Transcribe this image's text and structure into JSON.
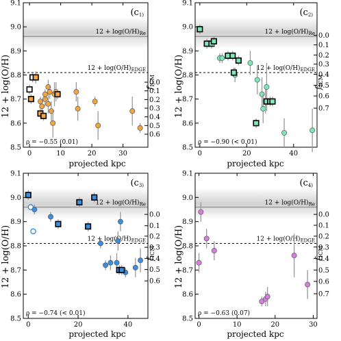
{
  "figure": {
    "ylabel": "12 + log(O/H)",
    "xlabel": "projected kpc",
    "right_label": "f_ICM",
    "ref_re_label": "12 + log(O/H)",
    "ref_re_sub": "Re",
    "ref_edge_label": "12 + log(O/H)",
    "ref_edge_sub": "EDGE"
  },
  "chart_data": [
    {
      "type": "scatter",
      "panel_letter": "c",
      "panel_sub": "1",
      "rho_text": "ρ = −0.55 (0.01)",
      "color": "#f2a541",
      "xlim": [
        -2,
        38
      ],
      "ylim": [
        8.5,
        9.1
      ],
      "xticks": [
        0,
        10,
        20,
        30
      ],
      "yticks": [
        8.5,
        8.6,
        8.7,
        8.8,
        8.9,
        9.0,
        9.1
      ],
      "ref_re": 8.96,
      "ref_edge": 8.81,
      "band": [
        8.91,
        9.04
      ],
      "ficm_ticks": [
        {
          "label": "0.0",
          "y": 8.77
        },
        {
          "label": "0.1",
          "y": 8.734
        },
        {
          "label": "0.2",
          "y": 8.698
        },
        {
          "label": "0.3",
          "y": 8.662
        },
        {
          "label": "0.4",
          "y": 8.626
        },
        {
          "label": "0.5",
          "y": 8.59
        },
        {
          "label": "0.6",
          "y": 8.554
        }
      ],
      "squares": [
        {
          "x": 0.0,
          "y": 8.74,
          "e": 0.02,
          "hollow": true
        },
        {
          "x": 1.0,
          "y": 8.79,
          "e": 0.02,
          "hollow": true
        },
        {
          "x": 2.0,
          "y": 8.79,
          "e": 0.025,
          "hollow": false
        },
        {
          "x": 0.5,
          "y": 8.7,
          "e": 0.02,
          "hollow": false
        },
        {
          "x": 3.5,
          "y": 8.64,
          "e": 0.02,
          "hollow": false
        },
        {
          "x": 4.5,
          "y": 8.63,
          "e": 0.02,
          "hollow": false
        },
        {
          "x": 9.0,
          "y": 8.72,
          "e": 0.02,
          "hollow": false
        }
      ],
      "circles": [
        {
          "x": 3.5,
          "y": 8.69,
          "e": 0.02,
          "hollow": false
        },
        {
          "x": 4.0,
          "y": 8.67,
          "e": 0.03,
          "hollow": false
        },
        {
          "x": 5.0,
          "y": 8.7,
          "e": 0.03,
          "hollow": false
        },
        {
          "x": 5.0,
          "y": 8.72,
          "e": 0.02,
          "hollow": false
        },
        {
          "x": 6.0,
          "y": 8.75,
          "e": 0.03,
          "hollow": false
        },
        {
          "x": 6.5,
          "y": 8.73,
          "e": 0.03,
          "hollow": false
        },
        {
          "x": 6.0,
          "y": 8.68,
          "e": 0.04,
          "hollow": false
        },
        {
          "x": 7.0,
          "y": 8.65,
          "e": 0.04,
          "hollow": false
        },
        {
          "x": 7.5,
          "y": 8.6,
          "e": 0.06,
          "hollow": false
        },
        {
          "x": 8.0,
          "y": 8.72,
          "e": 0.05,
          "hollow": false
        },
        {
          "x": 8.5,
          "y": 8.73,
          "e": 0.04,
          "hollow": false
        },
        {
          "x": 15.0,
          "y": 8.73,
          "e": 0.04,
          "hollow": false
        },
        {
          "x": 15.5,
          "y": 8.66,
          "e": 0.05,
          "hollow": false
        },
        {
          "x": 21.0,
          "y": 8.69,
          "e": 0.02,
          "hollow": false
        },
        {
          "x": 22.0,
          "y": 8.59,
          "e": 0.06,
          "hollow": false
        },
        {
          "x": 33.0,
          "y": 8.65,
          "e": 0.06,
          "hollow": false
        },
        {
          "x": 35.5,
          "y": 8.58,
          "e": 0.02,
          "hollow": false
        }
      ]
    },
    {
      "type": "scatter",
      "panel_letter": "c",
      "panel_sub": "2",
      "rho_text": "ρ = −0.90 (< 0.01)",
      "color": "#7ee8b8",
      "xlim": [
        -2,
        50
      ],
      "ylim": [
        8.5,
        9.1
      ],
      "xticks": [
        0,
        20,
        40
      ],
      "yticks": [
        8.5,
        8.6,
        8.7,
        8.8,
        8.9,
        9.0,
        9.1
      ],
      "ref_re": 8.96,
      "ref_edge": 8.81,
      "band": [
        8.91,
        9.04
      ],
      "ficm_ticks": [
        {
          "label": "0.0",
          "y": 8.965
        },
        {
          "label": "0.1",
          "y": 8.925
        },
        {
          "label": "0.2",
          "y": 8.883
        },
        {
          "label": "0.3",
          "y": 8.845
        },
        {
          "label": "0.4",
          "y": 8.803
        },
        {
          "label": "0.5",
          "y": 8.757
        },
        {
          "label": "0.6",
          "y": 8.713
        },
        {
          "label": "0.7",
          "y": 8.662
        }
      ],
      "squares": [
        {
          "x": 0.0,
          "y": 8.99,
          "e": 0.02,
          "hollow": false
        },
        {
          "x": 3.0,
          "y": 8.93,
          "e": 0.02,
          "hollow": false
        },
        {
          "x": 5.0,
          "y": 8.93,
          "e": 0.02,
          "hollow": false
        },
        {
          "x": 6.0,
          "y": 8.94,
          "e": 0.02,
          "hollow": false
        },
        {
          "x": 12.0,
          "y": 8.88,
          "e": 0.02,
          "hollow": false
        },
        {
          "x": 14.0,
          "y": 8.88,
          "e": 0.02,
          "hollow": false
        },
        {
          "x": 14.5,
          "y": 8.81,
          "e": 0.02,
          "hollow": false
        },
        {
          "x": 16.5,
          "y": 8.86,
          "e": 0.02,
          "hollow": false
        },
        {
          "x": 28.5,
          "y": 8.69,
          "e": 0.02,
          "hollow": false
        },
        {
          "x": 30.0,
          "y": 8.69,
          "e": 0.02,
          "hollow": false
        },
        {
          "x": 31.0,
          "y": 8.69,
          "e": 0.02,
          "hollow": false
        },
        {
          "x": 24.0,
          "y": 8.6,
          "e": 0.02,
          "hollow": false
        }
      ],
      "circles": [
        {
          "x": 8.5,
          "y": 8.87,
          "e": 0.02,
          "hollow": false
        },
        {
          "x": 9.5,
          "y": 8.87,
          "e": 0.02,
          "hollow": false
        },
        {
          "x": 15.0,
          "y": 8.8,
          "e": 0.03,
          "hollow": false
        },
        {
          "x": 21.5,
          "y": 8.85,
          "e": 0.05,
          "hollow": false
        },
        {
          "x": 24.5,
          "y": 8.78,
          "e": 0.06,
          "hollow": false
        },
        {
          "x": 26.5,
          "y": 8.72,
          "e": 0.07,
          "hollow": false
        },
        {
          "x": 27.0,
          "y": 8.66,
          "e": 0.06,
          "hollow": false
        },
        {
          "x": 28.0,
          "y": 8.69,
          "e": 0.05,
          "hollow": false
        },
        {
          "x": 28.5,
          "y": 8.75,
          "e": 0.1,
          "hollow": false
        },
        {
          "x": 36.0,
          "y": 8.56,
          "e": 0.06,
          "hollow": false
        },
        {
          "x": 48.0,
          "y": 8.57,
          "e": 0.09,
          "hollow": false
        }
      ]
    },
    {
      "type": "scatter",
      "panel_letter": "c",
      "panel_sub": "3",
      "rho_text": "ρ = −0.74 (< 0.01)",
      "color": "#3b8fe0",
      "xlim": [
        -2,
        48
      ],
      "ylim": [
        8.5,
        9.1
      ],
      "xticks": [
        0,
        20,
        40
      ],
      "yticks": [
        8.5,
        8.6,
        8.7,
        8.8,
        8.9,
        9.0,
        9.1
      ],
      "ref_re": 8.96,
      "ref_edge": 8.81,
      "band": [
        8.91,
        9.04
      ],
      "ficm_ticks": [
        {
          "label": "0.0",
          "y": 8.93
        },
        {
          "label": "0.1",
          "y": 8.883
        },
        {
          "label": "0.2",
          "y": 8.84
        },
        {
          "label": "0.3",
          "y": 8.794
        },
        {
          "label": "0.4",
          "y": 8.748
        },
        {
          "label": "0.5",
          "y": 8.702
        },
        {
          "label": "0.6",
          "y": 8.655
        }
      ],
      "squares": [
        {
          "x": 0.0,
          "y": 9.01,
          "e": 0.02,
          "hollow": false
        },
        {
          "x": 12.0,
          "y": 8.89,
          "e": 0.02,
          "hollow": false
        },
        {
          "x": 20.5,
          "y": 8.98,
          "e": 0.02,
          "hollow": false
        },
        {
          "x": 24.0,
          "y": 8.88,
          "e": 0.02,
          "hollow": false
        },
        {
          "x": 26.5,
          "y": 9.0,
          "e": 0.02,
          "hollow": false
        },
        {
          "x": 36.5,
          "y": 8.7,
          "e": 0.02,
          "hollow": false
        },
        {
          "x": 37.5,
          "y": 8.7,
          "e": 0.02,
          "hollow": false
        }
      ],
      "circles": [
        {
          "x": 1.0,
          "y": 8.96,
          "e": 0.0,
          "hollow": true
        },
        {
          "x": 2.0,
          "y": 8.86,
          "e": 0.0,
          "hollow": true
        },
        {
          "x": 2.5,
          "y": 8.95,
          "e": 0.02,
          "hollow": false
        },
        {
          "x": 9.0,
          "y": 8.92,
          "e": 0.02,
          "hollow": false
        },
        {
          "x": 29.0,
          "y": 8.81,
          "e": 0.02,
          "hollow": false
        },
        {
          "x": 31.0,
          "y": 8.72,
          "e": 0.02,
          "hollow": false
        },
        {
          "x": 33.0,
          "y": 8.73,
          "e": 0.03,
          "hollow": false
        },
        {
          "x": 35.5,
          "y": 8.73,
          "e": 0.04,
          "hollow": false
        },
        {
          "x": 36.0,
          "y": 8.82,
          "e": 0.04,
          "hollow": false
        },
        {
          "x": 37.0,
          "y": 8.9,
          "e": 0.04,
          "hollow": false
        },
        {
          "x": 39.0,
          "y": 8.69,
          "e": 0.02,
          "hollow": false
        },
        {
          "x": 43.0,
          "y": 8.71,
          "e": 0.04,
          "hollow": false
        },
        {
          "x": 45.0,
          "y": 8.74,
          "e": 0.05,
          "hollow": false
        }
      ]
    },
    {
      "type": "scatter",
      "panel_letter": "c",
      "panel_sub": "4",
      "rho_text": "ρ = −0.63 (0.07)",
      "color": "#d77ee0",
      "xlim": [
        -1,
        31
      ],
      "ylim": [
        8.5,
        9.1
      ],
      "xticks": [
        0,
        10,
        20,
        30
      ],
      "yticks": [
        8.5,
        8.6,
        8.7,
        8.8,
        8.9,
        9.0,
        9.1
      ],
      "ref_re": 8.96,
      "ref_edge": 8.81,
      "band": [
        8.91,
        9.04
      ],
      "ficm_ticks": [
        {
          "label": "0.0",
          "y": 8.93
        },
        {
          "label": "0.1",
          "y": 8.885
        },
        {
          "label": "0.2",
          "y": 8.84
        },
        {
          "label": "0.3",
          "y": 8.795
        },
        {
          "label": "0.4",
          "y": 8.748
        },
        {
          "label": "0.5",
          "y": 8.7
        },
        {
          "label": "0.6",
          "y": 8.653
        },
        {
          "label": "0.7",
          "y": 8.602
        }
      ],
      "squares": [],
      "circles": [
        {
          "x": 0.0,
          "y": 8.73,
          "e": 0.04,
          "hollow": false
        },
        {
          "x": 0.5,
          "y": 8.94,
          "e": 0.04,
          "hollow": false
        },
        {
          "x": 2.0,
          "y": 8.83,
          "e": 0.04,
          "hollow": false
        },
        {
          "x": 4.0,
          "y": 8.78,
          "e": 0.04,
          "hollow": false
        },
        {
          "x": 16.5,
          "y": 8.57,
          "e": 0.02,
          "hollow": false
        },
        {
          "x": 17.5,
          "y": 8.58,
          "e": 0.03,
          "hollow": false
        },
        {
          "x": 18.0,
          "y": 8.59,
          "e": 0.04,
          "hollow": false
        },
        {
          "x": 25.0,
          "y": 8.76,
          "e": 0.09,
          "hollow": false
        },
        {
          "x": 28.5,
          "y": 8.64,
          "e": 0.06,
          "hollow": false
        }
      ]
    }
  ]
}
